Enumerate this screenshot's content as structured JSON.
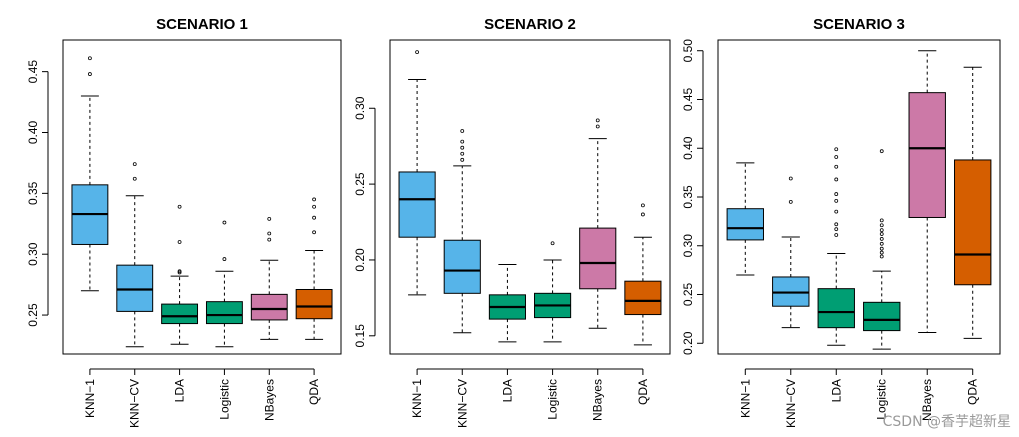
{
  "chart_data": [
    {
      "type": "boxplot",
      "title": "SCENARIO 1",
      "categories": [
        "KNN−1",
        "KNN−CV",
        "LDA",
        "Logistic",
        "NBayes",
        "QDA"
      ],
      "colors": [
        "#56B4E9",
        "#56B4E9",
        "#009E73",
        "#009E73",
        "#CC79A7",
        "#D55E00"
      ],
      "ylim": [
        0.218,
        0.476
      ],
      "yticks": [
        0.25,
        0.3,
        0.35,
        0.4,
        0.45
      ],
      "ytick_labels": [
        "0.25",
        "0.30",
        "0.35",
        "0.40",
        "0.45"
      ],
      "boxes": [
        {
          "whislo": 0.27,
          "q1": 0.308,
          "med": 0.333,
          "q3": 0.357,
          "whishi": 0.43,
          "fliers": [
            0.448,
            0.461
          ]
        },
        {
          "whislo": 0.224,
          "q1": 0.253,
          "med": 0.271,
          "q3": 0.291,
          "whishi": 0.348,
          "fliers": [
            0.362,
            0.374
          ]
        },
        {
          "whislo": 0.226,
          "q1": 0.243,
          "med": 0.249,
          "q3": 0.259,
          "whishi": 0.282,
          "fliers": [
            0.285,
            0.286,
            0.31,
            0.339
          ]
        },
        {
          "whislo": 0.224,
          "q1": 0.243,
          "med": 0.25,
          "q3": 0.261,
          "whishi": 0.286,
          "fliers": [
            0.296,
            0.326
          ]
        },
        {
          "whislo": 0.23,
          "q1": 0.246,
          "med": 0.255,
          "q3": 0.267,
          "whishi": 0.295,
          "fliers": [
            0.312,
            0.317,
            0.329
          ]
        },
        {
          "whislo": 0.23,
          "q1": 0.247,
          "med": 0.257,
          "q3": 0.271,
          "whishi": 0.303,
          "fliers": [
            0.318,
            0.33,
            0.339,
            0.345
          ]
        }
      ]
    },
    {
      "type": "boxplot",
      "title": "SCENARIO 2",
      "categories": [
        "KNN−1",
        "KNN−CV",
        "LDA",
        "Logistic",
        "NBayes",
        "QDA"
      ],
      "colors": [
        "#56B4E9",
        "#56B4E9",
        "#009E73",
        "#009E73",
        "#CC79A7",
        "#D55E00"
      ],
      "ylim": [
        0.138,
        0.345
      ],
      "yticks": [
        0.15,
        0.2,
        0.25,
        0.3
      ],
      "ytick_labels": [
        "0.15",
        "0.20",
        "0.25",
        "0.30"
      ],
      "boxes": [
        {
          "whislo": 0.177,
          "q1": 0.215,
          "med": 0.24,
          "q3": 0.258,
          "whishi": 0.319,
          "fliers": [
            0.337
          ]
        },
        {
          "whislo": 0.152,
          "q1": 0.178,
          "med": 0.193,
          "q3": 0.213,
          "whishi": 0.262,
          "fliers": [
            0.266,
            0.27,
            0.274,
            0.278,
            0.285
          ]
        },
        {
          "whislo": 0.146,
          "q1": 0.161,
          "med": 0.169,
          "q3": 0.177,
          "whishi": 0.197,
          "fliers": []
        },
        {
          "whislo": 0.146,
          "q1": 0.162,
          "med": 0.17,
          "q3": 0.178,
          "whishi": 0.2,
          "fliers": [
            0.211
          ]
        },
        {
          "whislo": 0.155,
          "q1": 0.181,
          "med": 0.198,
          "q3": 0.221,
          "whishi": 0.28,
          "fliers": [
            0.288,
            0.292
          ]
        },
        {
          "whislo": 0.144,
          "q1": 0.164,
          "med": 0.173,
          "q3": 0.186,
          "whishi": 0.215,
          "fliers": [
            0.23,
            0.236
          ]
        }
      ]
    },
    {
      "type": "boxplot",
      "title": "SCENARIO 3",
      "categories": [
        "KNN−1",
        "KNN−CV",
        "LDA",
        "Logistic",
        "NBayes",
        "QDA"
      ],
      "colors": [
        "#56B4E9",
        "#56B4E9",
        "#009E73",
        "#009E73",
        "#CC79A7",
        "#D55E00"
      ],
      "ylim": [
        0.189,
        0.511
      ],
      "yticks": [
        0.2,
        0.25,
        0.3,
        0.35,
        0.4,
        0.45,
        0.5
      ],
      "ytick_labels": [
        "0.20",
        "0.25",
        "0.30",
        "0.35",
        "0.40",
        "0.45",
        "0.50"
      ],
      "boxes": [
        {
          "whislo": 0.27,
          "q1": 0.306,
          "med": 0.318,
          "q3": 0.338,
          "whishi": 0.385,
          "fliers": []
        },
        {
          "whislo": 0.216,
          "q1": 0.238,
          "med": 0.252,
          "q3": 0.268,
          "whishi": 0.309,
          "fliers": [
            0.345,
            0.369
          ]
        },
        {
          "whislo": 0.198,
          "q1": 0.216,
          "med": 0.232,
          "q3": 0.256,
          "whishi": 0.292,
          "fliers": [
            0.311,
            0.317,
            0.322,
            0.335,
            0.346,
            0.353,
            0.368,
            0.381,
            0.391,
            0.399
          ]
        },
        {
          "whislo": 0.194,
          "q1": 0.213,
          "med": 0.224,
          "q3": 0.242,
          "whishi": 0.274,
          "fliers": [
            0.289,
            0.293,
            0.297,
            0.302,
            0.307,
            0.312,
            0.316,
            0.321,
            0.326,
            0.397
          ]
        },
        {
          "whislo": 0.211,
          "q1": 0.329,
          "med": 0.4,
          "q3": 0.457,
          "whishi": 0.5,
          "fliers": []
        },
        {
          "whislo": 0.205,
          "q1": 0.26,
          "med": 0.291,
          "q3": 0.388,
          "whishi": 0.483,
          "fliers": []
        }
      ]
    }
  ],
  "watermark": "CSDN @香芋超新星"
}
